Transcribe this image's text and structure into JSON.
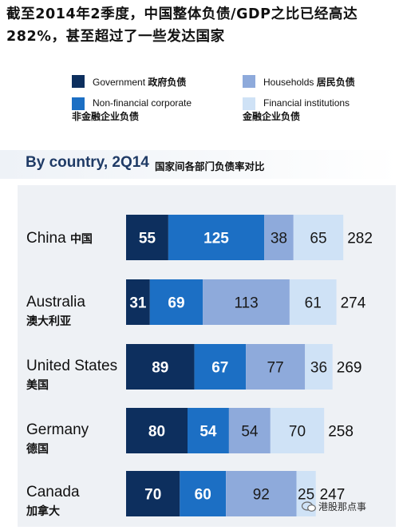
{
  "title": "截至2014年2季度，中国整体负债/GDP之比已经高达282%，甚至超过了一些发达国家",
  "legend": [
    {
      "en": "Government",
      "zh": "政府负债",
      "color": "#0d2f5e"
    },
    {
      "en": "Households",
      "zh": "居民负债",
      "color": "#8eaadb"
    },
    {
      "en": "Non-financial corporate",
      "zh": "非金融企业负债",
      "color": "#1c6fc4"
    },
    {
      "en": "Financial institutions",
      "zh": "金融企业负债",
      "color": "#cfe2f6"
    }
  ],
  "subtitle": {
    "en": "By country, 2Q14",
    "zh": "国家间各部门负债率对比"
  },
  "watermark": "港股那点事",
  "chart_data": {
    "type": "bar",
    "orientation": "horizontal",
    "stacked": true,
    "categories": [
      {
        "en": "China",
        "zh": "中国"
      },
      {
        "en": "Australia",
        "zh": "澳大利亚"
      },
      {
        "en": "United States",
        "zh": "美国"
      },
      {
        "en": "Germany",
        "zh": "德国"
      },
      {
        "en": "Canada",
        "zh": "加拿大"
      }
    ],
    "series": [
      {
        "name": "Government",
        "color": "#0d2f5e",
        "values": [
          55,
          31,
          89,
          80,
          70
        ]
      },
      {
        "name": "Non-financial corporate",
        "color": "#1c6fc4",
        "values": [
          125,
          69,
          67,
          54,
          60
        ]
      },
      {
        "name": "Households",
        "color": "#8eaadb",
        "values": [
          38,
          113,
          77,
          54,
          92
        ]
      },
      {
        "name": "Financial institutions",
        "color": "#cfe2f6",
        "values": [
          65,
          61,
          36,
          70,
          25
        ]
      }
    ],
    "totals": [
      282,
      274,
      269,
      258,
      247
    ],
    "title": "By country, 2Q14",
    "xlabel": "",
    "ylabel": ""
  }
}
